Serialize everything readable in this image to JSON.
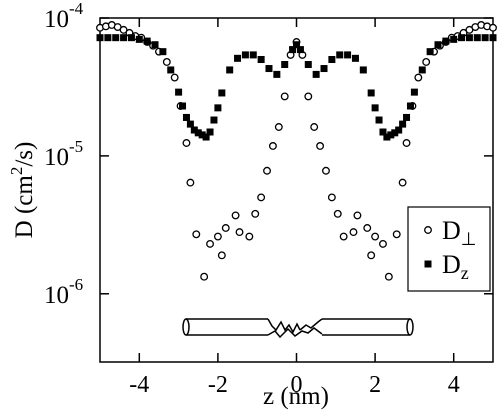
{
  "chart_data": {
    "type": "scatter",
    "x_label": "z (nm)",
    "y_label_parts": [
      "D (cm",
      "2",
      "/s)"
    ],
    "xlim": [
      -5,
      5
    ],
    "xticks": [
      -4,
      -2,
      0,
      2,
      4
    ],
    "ylim": [
      3.2e-07,
      0.0001
    ],
    "log_y": true,
    "yticks": [
      {
        "value": 1e-06,
        "label": "10",
        "exponent": "-6"
      },
      {
        "value": 1e-05,
        "label": "10",
        "exponent": "-5"
      },
      {
        "value": 0.0001,
        "label": "10",
        "exponent": "-4"
      }
    ],
    "legend": "right",
    "series": [
      {
        "name": "D",
        "subscript": "⊥",
        "marker": "circle",
        "color": "#000000",
        "x": [
          -5,
          -4.85,
          -4.7,
          -4.55,
          -4.4,
          -4.25,
          -4.1,
          -3.95,
          -3.8,
          -3.65,
          -3.5,
          -3.3,
          -3.1,
          -2.95,
          -2.8,
          -2.7,
          -2.55,
          -2.35,
          -2.2,
          -2,
          -1.9,
          -1.8,
          -1.55,
          -1.45,
          -1.2,
          -1.05,
          -0.9,
          -0.75,
          -0.6,
          -0.45,
          -0.3,
          -0.15,
          0,
          0.15,
          0.3,
          0.45,
          0.6,
          0.75,
          0.9,
          1.05,
          1.2,
          1.45,
          1.55,
          1.8,
          1.9,
          2,
          2.2,
          2.35,
          2.55,
          2.7,
          2.8,
          2.95,
          3.1,
          3.3,
          3.5,
          3.65,
          3.8,
          3.95,
          4.1,
          4.25,
          4.4,
          4.55,
          4.7,
          4.85,
          5
        ],
        "values": [
          8.5e-05,
          8.7e-05,
          8.9e-05,
          8.6e-05,
          8.2e-05,
          7.8e-05,
          7.4e-05,
          7.2e-05,
          6.7e-05,
          6.3e-05,
          5.7e-05,
          4.8e-05,
          3.7e-05,
          2.3e-05,
          1.24e-05,
          6.4e-06,
          2.7e-06,
          1.33e-06,
          2.3e-06,
          2.6e-06,
          1.9e-06,
          3e-06,
          3.7e-06,
          2.8e-06,
          2.6e-06,
          3.8e-06,
          5e-06,
          7.8e-06,
          1.18e-05,
          1.62e-05,
          2.7e-05,
          5.4e-05,
          6.7e-05,
          5.4e-05,
          2.7e-05,
          1.62e-05,
          1.18e-05,
          7.8e-06,
          5e-06,
          3.8e-06,
          2.6e-06,
          2.8e-06,
          3.7e-06,
          3e-06,
          1.9e-06,
          2.6e-06,
          2.3e-06,
          1.33e-06,
          2.7e-06,
          6.4e-06,
          1.24e-05,
          2.3e-05,
          3.7e-05,
          4.8e-05,
          5.7e-05,
          6.3e-05,
          6.7e-05,
          7.2e-05,
          7.4e-05,
          7.8e-05,
          8.2e-05,
          8.6e-05,
          8.9e-05,
          8.7e-05,
          8.5e-05
        ]
      },
      {
        "name": "D",
        "subscript": "z",
        "marker": "square",
        "color": "#000000",
        "x": [
          -5,
          -4.8,
          -4.6,
          -4.4,
          -4.2,
          -4,
          -3.8,
          -3.6,
          -3.4,
          -3.2,
          -3,
          -2.9,
          -2.8,
          -2.7,
          -2.6,
          -2.5,
          -2.4,
          -2.3,
          -2.2,
          -2.1,
          -2,
          -1.9,
          -1.7,
          -1.5,
          -1.3,
          -1.1,
          -0.9,
          -0.7,
          -0.5,
          -0.3,
          -0.1,
          0,
          0.1,
          0.3,
          0.5,
          0.7,
          0.9,
          1.1,
          1.3,
          1.5,
          1.7,
          1.9,
          2,
          2.1,
          2.2,
          2.3,
          2.4,
          2.5,
          2.6,
          2.7,
          2.8,
          2.9,
          3,
          3.2,
          3.4,
          3.6,
          3.8,
          4,
          4.2,
          4.4,
          4.6,
          4.8,
          5
        ],
        "values": [
          7.2e-05,
          7.2e-05,
          7.2e-05,
          7.2e-05,
          7.2e-05,
          7e-05,
          6.8e-05,
          6.4e-05,
          5.7e-05,
          4.2e-05,
          2.9e-05,
          2.3e-05,
          1.9e-05,
          1.7e-05,
          1.54e-05,
          1.47e-05,
          1.42e-05,
          1.37e-05,
          1.49e-05,
          1.82e-05,
          2.23e-05,
          2.86e-05,
          4.2e-05,
          5.1e-05,
          5.4e-05,
          5.4e-05,
          5e-05,
          4.3e-05,
          3.9e-05,
          4.6e-05,
          5.9e-05,
          6.4e-05,
          5.9e-05,
          4.6e-05,
          3.9e-05,
          4.3e-05,
          5e-05,
          5.4e-05,
          5.4e-05,
          5.1e-05,
          4.2e-05,
          2.86e-05,
          2.23e-05,
          1.82e-05,
          1.49e-05,
          1.37e-05,
          1.42e-05,
          1.47e-05,
          1.54e-05,
          1.7e-05,
          1.9e-05,
          2.3e-05,
          2.9e-05,
          4.2e-05,
          5.7e-05,
          6.4e-05,
          6.8e-05,
          7e-05,
          7.2e-05,
          7.2e-05,
          7.2e-05,
          7.2e-05,
          7.2e-05
        ]
      }
    ]
  }
}
